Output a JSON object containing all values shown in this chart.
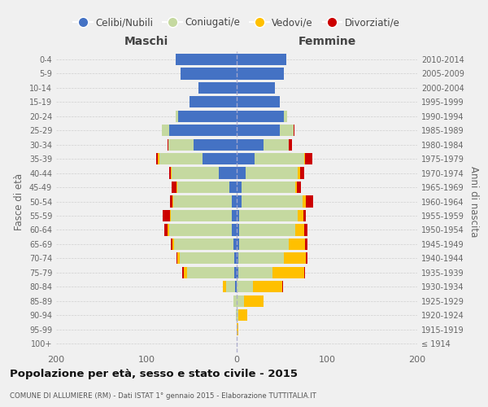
{
  "age_groups": [
    "100+",
    "95-99",
    "90-94",
    "85-89",
    "80-84",
    "75-79",
    "70-74",
    "65-69",
    "60-64",
    "55-59",
    "50-54",
    "45-49",
    "40-44",
    "35-39",
    "30-34",
    "25-29",
    "20-24",
    "15-19",
    "10-14",
    "5-9",
    "0-4"
  ],
  "birth_years": [
    "≤ 1914",
    "1915-1919",
    "1920-1924",
    "1925-1929",
    "1930-1934",
    "1935-1939",
    "1940-1944",
    "1945-1949",
    "1950-1954",
    "1955-1959",
    "1960-1964",
    "1965-1969",
    "1970-1974",
    "1975-1979",
    "1980-1984",
    "1985-1989",
    "1990-1994",
    "1995-1999",
    "2000-2004",
    "2005-2009",
    "2010-2014"
  ],
  "maschi": {
    "celibi": [
      0,
      0,
      0,
      0,
      2,
      3,
      3,
      4,
      5,
      5,
      5,
      8,
      20,
      38,
      48,
      75,
      65,
      52,
      42,
      62,
      68
    ],
    "coniugati": [
      0,
      0,
      1,
      4,
      10,
      52,
      60,
      65,
      70,
      68,
      65,
      58,
      52,
      48,
      28,
      8,
      3,
      0,
      0,
      0,
      0
    ],
    "vedovi": [
      0,
      0,
      0,
      0,
      3,
      4,
      3,
      2,
      2,
      1,
      1,
      1,
      1,
      1,
      0,
      0,
      0,
      0,
      0,
      0,
      0
    ],
    "divorziati": [
      0,
      0,
      0,
      0,
      0,
      1,
      1,
      2,
      3,
      8,
      3,
      5,
      2,
      2,
      1,
      0,
      0,
      0,
      0,
      0,
      0
    ]
  },
  "femmine": {
    "nubili": [
      0,
      0,
      0,
      0,
      0,
      2,
      2,
      3,
      3,
      3,
      5,
      5,
      10,
      20,
      30,
      48,
      52,
      48,
      42,
      52,
      55
    ],
    "coniugate": [
      0,
      0,
      2,
      8,
      18,
      38,
      50,
      55,
      62,
      65,
      68,
      60,
      58,
      55,
      28,
      15,
      4,
      0,
      0,
      0,
      0
    ],
    "vedove": [
      0,
      2,
      10,
      22,
      32,
      35,
      25,
      18,
      10,
      6,
      4,
      2,
      2,
      1,
      0,
      0,
      0,
      0,
      0,
      0,
      0
    ],
    "divorziate": [
      0,
      0,
      0,
      0,
      1,
      1,
      1,
      2,
      3,
      3,
      8,
      4,
      5,
      8,
      3,
      1,
      0,
      0,
      0,
      0,
      0
    ]
  },
  "colors": {
    "celibi_nubili": "#4472c4",
    "coniugati": "#c5d9a0",
    "vedovi": "#ffc000",
    "divorziati": "#cc0000"
  },
  "title": "Popolazione per età, sesso e stato civile - 2015",
  "subtitle": "COMUNE DI ALLUMIERE (RM) - Dati ISTAT 1° gennaio 2015 - Elaborazione TUTTITALIA.IT",
  "xlabel_left": "Maschi",
  "xlabel_right": "Femmine",
  "ylabel_left": "Fasce di età",
  "ylabel_right": "Anni di nascita",
  "xlim": 200,
  "legend_labels": [
    "Celibi/Nubili",
    "Coniugati/e",
    "Vedovi/e",
    "Divorziati/e"
  ],
  "bg_color": "#f0f0f0",
  "plot_bg": "#f0f0f0"
}
